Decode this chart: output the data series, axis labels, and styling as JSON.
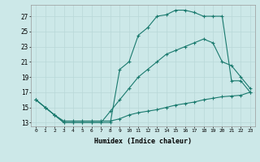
{
  "xlabel": "Humidex (Indice chaleur)",
  "ylabel": "",
  "bg_color": "#cce8e8",
  "line_color": "#1a7a6e",
  "grid_color": "#b8d8d8",
  "xlim": [
    -0.5,
    23.5
  ],
  "ylim": [
    12.5,
    28.5
  ],
  "yticks": [
    13,
    15,
    17,
    19,
    21,
    23,
    25,
    27
  ],
  "xticks": [
    0,
    1,
    2,
    3,
    4,
    5,
    6,
    7,
    8,
    9,
    10,
    11,
    12,
    13,
    14,
    15,
    16,
    17,
    18,
    19,
    20,
    21,
    22,
    23
  ],
  "line1_x": [
    0,
    1,
    2,
    3,
    4,
    5,
    6,
    7,
    8,
    9,
    10,
    11,
    12,
    13,
    14,
    15,
    16,
    17,
    18,
    19,
    20,
    21,
    22,
    23
  ],
  "line1_y": [
    16,
    15,
    14,
    13,
    13,
    13,
    13,
    13,
    13,
    20,
    21,
    24.5,
    25.5,
    27,
    27.2,
    27.8,
    27.8,
    27.5,
    27,
    27,
    27,
    18.5,
    18.5,
    17
  ],
  "line2_x": [
    0,
    1,
    2,
    3,
    4,
    5,
    6,
    7,
    8,
    9,
    10,
    11,
    12,
    13,
    14,
    15,
    16,
    17,
    18,
    19,
    20,
    21,
    22,
    23
  ],
  "line2_y": [
    16,
    15,
    14,
    13,
    13,
    13,
    13,
    13,
    14.5,
    16,
    17.5,
    19,
    20,
    21,
    22,
    22.5,
    23,
    23.5,
    24,
    23.5,
    21,
    20.5,
    19,
    17.5
  ],
  "line3_x": [
    0,
    1,
    2,
    3,
    4,
    5,
    6,
    7,
    8,
    9,
    10,
    11,
    12,
    13,
    14,
    15,
    16,
    17,
    18,
    19,
    20,
    21,
    22,
    23
  ],
  "line3_y": [
    16,
    15,
    14,
    13.2,
    13.2,
    13.2,
    13.2,
    13.2,
    13.2,
    13.5,
    14,
    14.3,
    14.5,
    14.7,
    15,
    15.3,
    15.5,
    15.7,
    16,
    16.2,
    16.4,
    16.5,
    16.6,
    17
  ]
}
